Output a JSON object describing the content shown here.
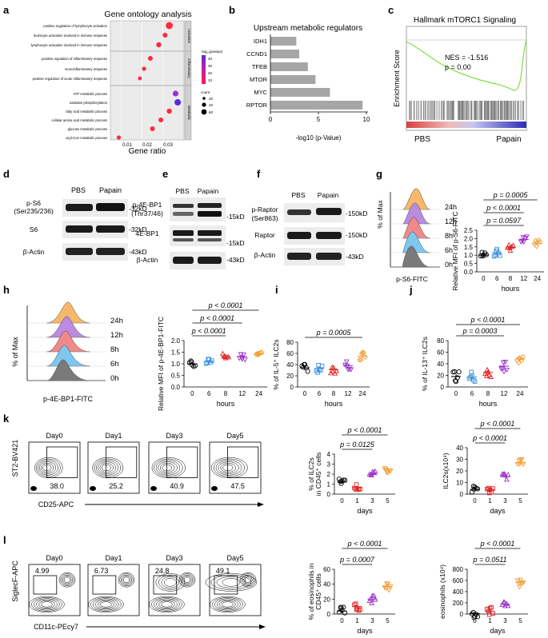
{
  "panels": {
    "a": "a",
    "b": "b",
    "c": "c",
    "d": "d",
    "e": "e",
    "f": "f",
    "g": "g",
    "h": "h",
    "i": "i",
    "j": "j",
    "k": "k",
    "l": "l"
  },
  "colors": {
    "orange": "#f39c32",
    "purple": "#9b30c8",
    "red": "#e02020",
    "blue": "#3a8fd8",
    "black": "#000000",
    "gsea_green": "#7fe040",
    "bar_gray": "#a6a6a6"
  },
  "panel_a": {
    "title": "Gene ontology analysis",
    "xlabel": "Gene ratio",
    "xticks": [
      "0.01",
      "0.02",
      "0.03"
    ],
    "groups": [
      "Activation",
      "Inflammatory",
      "Metabolic"
    ],
    "terms": [
      "positive regulation of lymphocyte activation",
      "leukocyte activation involved in immune response",
      "lymphocyte activation involved in immune response",
      "positive regulation of inflammatory response",
      "neuroinflammatory response",
      "positive regulation of acute inflammatory response",
      "ATP metabolic process",
      "oxidative phosphorylation",
      "fatty acid metabolic process",
      "cellular amino acid metabolic process",
      "glucose metabolic process",
      "acyl-CoA metabolic process"
    ],
    "gene_ratio": [
      0.033,
      0.031,
      0.028,
      0.024,
      0.021,
      0.019,
      0.036,
      0.037,
      0.033,
      0.029,
      0.025,
      0.009
    ],
    "legend_p_title": "-log₁₀(pvalue)",
    "legend_p_ticks": [
      "40",
      "30",
      "20",
      "10"
    ],
    "legend_count_title": "count",
    "legend_count_ticks": [
      "20",
      "40",
      "60"
    ]
  },
  "panel_b": {
    "title": "Upstream metabolic regulators",
    "xlabel": "-log10 (p-Value)",
    "xticks": [
      "0",
      "5",
      "10"
    ],
    "chart_data": {
      "type": "bar",
      "categories": [
        "IDH1",
        "CCND1",
        "TFEB",
        "MTOR",
        "MYC",
        "RPTOR"
      ],
      "values": [
        2.7,
        3.0,
        3.9,
        4.7,
        6.2,
        9.6
      ],
      "xlim": [
        0,
        10
      ]
    }
  },
  "panel_c": {
    "title": "Hallmark mTORC1 Signaling",
    "ylabel": "Enrichment Score",
    "nes": "NES = -1.516",
    "p": "p = 0.00",
    "left": "PBS",
    "right": "Papain"
  },
  "panel_d": {
    "header": [
      "PBS",
      "Papain"
    ],
    "rows": [
      {
        "label": "p-S6\n(Ser235/236)",
        "label1": "p-S6",
        "label2": "(Ser235/236)",
        "kd": "-32kD"
      },
      {
        "label1": "S6",
        "kd": "-32kD"
      },
      {
        "label1": "β-Actin",
        "kd": "-43kD"
      }
    ]
  },
  "panel_e": {
    "header": [
      "PBS",
      "Papain"
    ],
    "rows": [
      {
        "label1": "p-4E-BP1",
        "label2": "(Thr37/46)",
        "kd": "-15kD"
      },
      {
        "label1": "4E-BP1",
        "kd": "-15kD"
      },
      {
        "label1": "β-Actin",
        "kd": "-43kD"
      }
    ]
  },
  "panel_f": {
    "header": [
      "PBS",
      "Papain"
    ],
    "rows": [
      {
        "label1": "p-Raptor",
        "label2": "(Ser863)",
        "kd": "-150kD"
      },
      {
        "label1": "Raptor",
        "kd": "-150kD"
      },
      {
        "label1": "β-Actin",
        "kd": "-43kD"
      }
    ]
  },
  "panel_g": {
    "hist_ylabel": "% of Max",
    "hist_xlabel": "p-S6-FITC",
    "hist_times": [
      "24h",
      "12h",
      "8h",
      "6h",
      "0h"
    ],
    "ylabel": "Relative MFI of p-S6-FITC",
    "xlabel": "hours",
    "yticks": [
      "0.0",
      "0.5",
      "1.0",
      "1.5",
      "2.0",
      "2.5"
    ],
    "chart_data": {
      "type": "scatter",
      "categories": [
        "0",
        "6",
        "8",
        "12",
        "24"
      ],
      "means": [
        1.0,
        1.15,
        1.45,
        1.95,
        1.7
      ],
      "ylim": [
        0,
        2.5
      ],
      "sig": [
        "p = 0.0005",
        "p < 0.0001",
        "p = 0.0597"
      ]
    }
  },
  "panel_h": {
    "hist_ylabel": "% of Max",
    "hist_xlabel": "p-4E-BP1-FITC",
    "hist_times": [
      "24h",
      "12h",
      "8h",
      "6h",
      "0h"
    ],
    "ylabel": "Relative MFI of p-4E-BP1-FITC",
    "xlabel": "hours",
    "yticks": [
      "0.0",
      "0.5",
      "1.0",
      "1.5",
      "2.0"
    ],
    "chart_data": {
      "type": "scatter",
      "categories": [
        "0",
        "6",
        "8",
        "12",
        "24"
      ],
      "means": [
        1.0,
        1.1,
        1.3,
        1.32,
        1.42
      ],
      "ylim": [
        0,
        2.0
      ],
      "sig": [
        "p < 0.0001",
        "p < 0.0001",
        "p < 0.0001"
      ]
    }
  },
  "panel_i": {
    "ylabel": "% of IL-5⁺ ILC2s",
    "xlabel": "hours",
    "yticks": [
      "0",
      "20",
      "40",
      "60",
      "80"
    ],
    "chart_data": {
      "type": "scatter",
      "categories": [
        "0",
        "6",
        "8",
        "12",
        "24"
      ],
      "means": [
        34,
        33,
        31,
        38,
        55
      ],
      "ylim": [
        0,
        80
      ],
      "sig": [
        "p = 0.0005"
      ]
    }
  },
  "panel_j": {
    "ylabel": "% of IL-13⁺ ILC2s",
    "xlabel": "hours",
    "yticks": [
      "0",
      "20",
      "40",
      "60",
      "80"
    ],
    "chart_data": {
      "type": "scatter",
      "categories": [
        "0",
        "6",
        "8",
        "12",
        "24"
      ],
      "means": [
        18,
        17,
        25,
        36,
        48
      ],
      "ylim": [
        0,
        80
      ],
      "sig": [
        "p < 0.0001",
        "p = 0.0003"
      ]
    }
  },
  "panel_k": {
    "days": [
      "Day0",
      "Day1",
      "Day3",
      "Day5"
    ],
    "gates": [
      "38.0",
      "25.2",
      "40.9",
      "47.5"
    ],
    "yaxis": "ST2-BV421",
    "xaxis": "CD25-APC",
    "plot1": {
      "ylabel1": "% of ILC2s",
      "ylabel2": "in CD45⁺ cells",
      "xlabel": "days",
      "yticks": [
        "0",
        "1",
        "2",
        "3",
        "4"
      ],
      "chart_data": {
        "type": "scatter",
        "categories": [
          "0",
          "1",
          "3",
          "5"
        ],
        "means": [
          1.2,
          0.65,
          1.95,
          2.5
        ],
        "ylim": [
          0,
          4
        ],
        "sig": [
          "p < 0.0001",
          "p = 0.0125"
        ]
      }
    },
    "plot2": {
      "ylabel": "ILC2s(x10⁴)",
      "xlabel": "days",
      "yticks": [
        "0",
        "10",
        "20",
        "30",
        "40"
      ],
      "chart_data": {
        "type": "scatter",
        "categories": [
          "0",
          "1",
          "3",
          "5"
        ],
        "means": [
          4,
          4,
          15,
          27
        ],
        "ylim": [
          0,
          40
        ],
        "sig": [
          "p < 0.0001",
          "p < 0.0001"
        ]
      }
    }
  },
  "panel_l": {
    "days": [
      "Day0",
      "Day1",
      "Day3",
      "Day5"
    ],
    "gates": [
      "4.99",
      "6.73",
      "24.8",
      "49.1"
    ],
    "yaxis": "SiglecF-APC",
    "xaxis": "CD11c-PEcy7",
    "plot1": {
      "ylabel1": "% of eosinophils in",
      "ylabel2": "CD45⁺ cells",
      "xlabel": "days",
      "yticks": [
        "0",
        "20",
        "40",
        "60"
      ],
      "chart_data": {
        "type": "scatter",
        "categories": [
          "0",
          "1",
          "3",
          "5"
        ],
        "means": [
          4,
          10,
          20,
          37
        ],
        "ylim": [
          0,
          60
        ],
        "sig": [
          "p < 0.0001",
          "p = 0.0007"
        ]
      }
    },
    "plot2": {
      "ylabel": "eosinophils (x10⁴)",
      "xlabel": "days",
      "yticks": [
        "0",
        "200",
        "400",
        "600",
        "800"
      ],
      "chart_data": {
        "type": "scatter",
        "categories": [
          "0",
          "1",
          "3",
          "5"
        ],
        "means": [
          10,
          45,
          175,
          560
        ],
        "ylim": [
          0,
          800
        ],
        "sig": [
          "p < 0.0001",
          "p = 0.0511"
        ]
      }
    }
  }
}
